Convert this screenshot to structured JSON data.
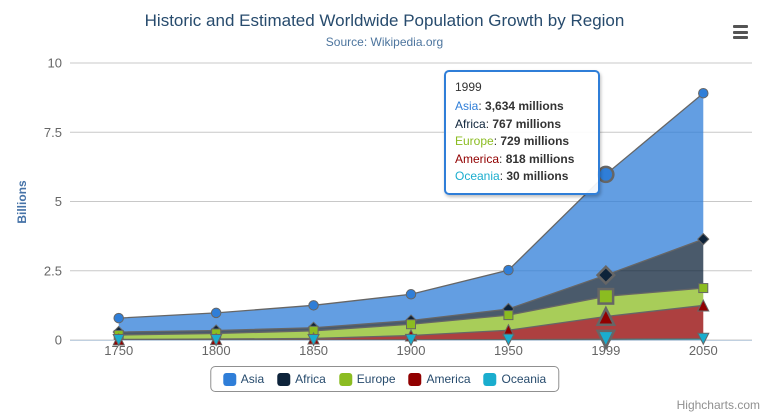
{
  "theme": {
    "background": "#ffffff",
    "title_color": "#274b6d",
    "subtitle_color": "#4d759e",
    "axis_label_color": "#666666",
    "yaxis_title_color": "#4572a7",
    "grid_color": "#c8c8c8",
    "axis_line_color": "#c0d0e0",
    "legend_text_color": "#274b6d",
    "legend_border_color": "#909090",
    "credit_color": "#909090",
    "menu_icon_color": "#545454",
    "tooltip_border_color": "#2f7ed8"
  },
  "chart_data": {
    "type": "area",
    "stacking": "normal",
    "title": "Historic and Estimated Worldwide Population Growth by Region",
    "subtitle": "Source: Wikipedia.org",
    "xlabel": "",
    "ylabel": "Billions",
    "ylim": [
      0,
      10
    ],
    "yticks": [
      0,
      2.5,
      5,
      7.5,
      10
    ],
    "grid": true,
    "legend_position": "bottom-center",
    "values_unit": "millions",
    "fill_opacity": 0.75,
    "line_color": "#666666",
    "hover_category": "1999",
    "categories": [
      "1750",
      "1800",
      "1850",
      "1900",
      "1950",
      "1999",
      "2050"
    ],
    "series": [
      {
        "name": "Asia",
        "color": "#2f7ed8",
        "marker": "circle",
        "values": [
          502,
          635,
          809,
          947,
          1402,
          3634,
          5268
        ]
      },
      {
        "name": "Africa",
        "color": "#0d233a",
        "marker": "diamond",
        "values": [
          106,
          107,
          111,
          133,
          221,
          767,
          1766
        ]
      },
      {
        "name": "Europe",
        "color": "#8bbc21",
        "marker": "square",
        "values": [
          163,
          203,
          276,
          408,
          547,
          729,
          628
        ]
      },
      {
        "name": "America",
        "color": "#910000",
        "marker": "triangle",
        "values": [
          18,
          31,
          54,
          156,
          339,
          818,
          1201
        ]
      },
      {
        "name": "Oceania",
        "color": "#1aadce",
        "marker": "triangle-down",
        "values": [
          2,
          2,
          2,
          6,
          13,
          30,
          46
        ]
      }
    ],
    "stack_order_top_to_bottom": [
      "Asia",
      "Africa",
      "Europe",
      "America",
      "Oceania"
    ]
  },
  "tooltip": {
    "header": "1999",
    "rows": [
      {
        "series": "Asia",
        "value": "3,634",
        "suffix": "millions"
      },
      {
        "series": "Africa",
        "value": "767",
        "suffix": "millions"
      },
      {
        "series": "Europe",
        "value": "729",
        "suffix": "millions"
      },
      {
        "series": "America",
        "value": "818",
        "suffix": "millions"
      },
      {
        "series": "Oceania",
        "value": "30",
        "suffix": "millions"
      }
    ]
  },
  "credit": {
    "label": "Highcharts.com"
  }
}
